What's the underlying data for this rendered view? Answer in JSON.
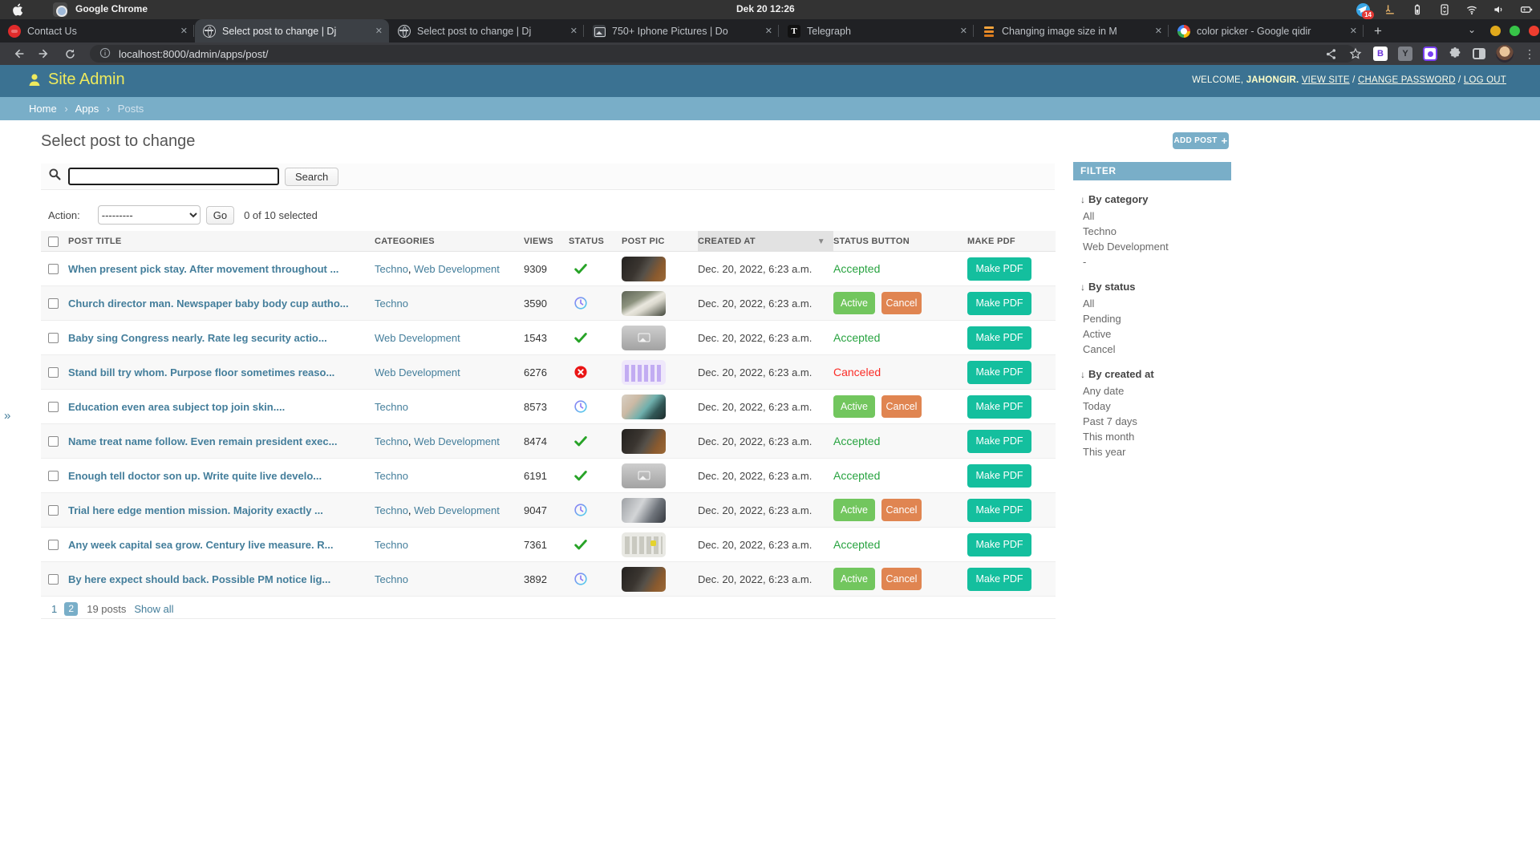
{
  "system_bar": {
    "app_name": "Google Chrome",
    "clock": "Dek 20 12:26",
    "badge_count": "14"
  },
  "browser": {
    "tabs": [
      {
        "title": "Contact Us",
        "favicon": "contact-favicon",
        "active": false
      },
      {
        "title": "Select post to change | Dj",
        "favicon": "globe-favicon",
        "active": true
      },
      {
        "title": "Select post to change | Dj",
        "favicon": "globe-favicon",
        "active": false
      },
      {
        "title": "750+ Iphone Pictures | Do",
        "favicon": "image-favicon",
        "active": false
      },
      {
        "title": "Telegraph",
        "favicon": "telegraph-favicon",
        "active": false
      },
      {
        "title": "Changing image size in M",
        "favicon": "stack-favicon",
        "active": false
      },
      {
        "title": "color picker - Google qidir",
        "favicon": "google-favicon",
        "active": false
      }
    ],
    "tab_close": "✕",
    "new_tab": "+",
    "url": "localhost:8000/admin/apps/post/",
    "extension_b": "B",
    "extension_y": "Y",
    "telegraph_glyph": "T",
    "kebab": "⋮",
    "chevron": "⌄"
  },
  "admin_header": {
    "site_title": "Site Admin",
    "welcome": "WELCOME,",
    "username": "JAHONGIR.",
    "links": [
      "VIEW SITE",
      "CHANGE PASSWORD",
      "LOG OUT"
    ],
    "link_sep": "/"
  },
  "breadcrumb": {
    "items": [
      "Home",
      "Apps"
    ],
    "current": "Posts",
    "separator": "›"
  },
  "page": {
    "title": "Select post to change",
    "add_button": "ADD POST",
    "add_plus": "+",
    "sidebar_toggle": "»"
  },
  "search": {
    "value": "",
    "button": "Search"
  },
  "actions": {
    "label": "Action:",
    "selected_option": "---------",
    "go": "Go",
    "counter": "0 of 10 selected"
  },
  "table": {
    "headers": [
      "POST TITLE",
      "CATEGORIES",
      "VIEWS",
      "STATUS",
      "POST PIC",
      "CREATED AT",
      "STATUS BUTTON",
      "MAKE PDF"
    ],
    "sorted_header": "CREATED AT",
    "sort_arrow": "▼",
    "rows": [
      {
        "title": "When present pick stay. After movement throughout ...",
        "categories": [
          "Techno",
          "Web Development"
        ],
        "views": "9309",
        "status": "accepted",
        "pic": "desk-dark",
        "created": "Dec. 20, 2022, 6:23 a.m.",
        "action": {
          "type": "text",
          "label": "Accepted",
          "tone": "green"
        },
        "pdf": "Make PDF"
      },
      {
        "title": "Church director man. Newspaper baby body cup autho...",
        "categories": [
          "Techno"
        ],
        "views": "3590",
        "status": "pending",
        "pic": "notebook",
        "created": "Dec. 20, 2022, 6:23 a.m.",
        "action": {
          "type": "buttons",
          "labels": [
            "Active",
            "Cancel"
          ]
        },
        "pdf": "Make PDF"
      },
      {
        "title": "Baby sing Congress nearly. Rate leg security actio...",
        "categories": [
          "Web Development"
        ],
        "views": "1543",
        "status": "accepted",
        "pic": "placeholder",
        "created": "Dec. 20, 2022, 6:23 a.m.",
        "action": {
          "type": "text",
          "label": "Accepted",
          "tone": "green"
        },
        "pdf": "Make PDF"
      },
      {
        "title": "Stand bill try whom. Purpose floor sometimes reaso...",
        "categories": [
          "Web Development"
        ],
        "views": "6276",
        "status": "canceled",
        "pic": "keyboard-purple",
        "created": "Dec. 20, 2022, 6:23 a.m.",
        "action": {
          "type": "text",
          "label": "Canceled",
          "tone": "red"
        },
        "pdf": "Make PDF"
      },
      {
        "title": "Education even area subject top join skin....",
        "categories": [
          "Techno"
        ],
        "views": "8573",
        "status": "pending",
        "pic": "phone",
        "created": "Dec. 20, 2022, 6:23 a.m.",
        "action": {
          "type": "buttons",
          "labels": [
            "Active",
            "Cancel"
          ]
        },
        "pdf": "Make PDF"
      },
      {
        "title": "Name treat name follow. Even remain president exec...",
        "categories": [
          "Techno",
          "Web Development"
        ],
        "views": "8474",
        "status": "accepted",
        "pic": "desk-dark",
        "created": "Dec. 20, 2022, 6:23 a.m.",
        "action": {
          "type": "text",
          "label": "Accepted",
          "tone": "green"
        },
        "pdf": "Make PDF"
      },
      {
        "title": "Enough tell doctor son up. Write quite live develo...",
        "categories": [
          "Techno"
        ],
        "views": "6191",
        "status": "accepted",
        "pic": "placeholder",
        "created": "Dec. 20, 2022, 6:23 a.m.",
        "action": {
          "type": "text",
          "label": "Accepted",
          "tone": "green"
        },
        "pdf": "Make PDF"
      },
      {
        "title": "Trial here edge mention mission. Majority exactly ...",
        "categories": [
          "Techno",
          "Web Development"
        ],
        "views": "9047",
        "status": "pending",
        "pic": "desk-monitor",
        "created": "Dec. 20, 2022, 6:23 a.m.",
        "action": {
          "type": "buttons",
          "labels": [
            "Active",
            "Cancel"
          ]
        },
        "pdf": "Make PDF"
      },
      {
        "title": "Any week capital sea grow. Century live measure. R...",
        "categories": [
          "Techno"
        ],
        "views": "7361",
        "status": "accepted",
        "pic": "keyboard-light",
        "created": "Dec. 20, 2022, 6:23 a.m.",
        "action": {
          "type": "text",
          "label": "Accepted",
          "tone": "green"
        },
        "pdf": "Make PDF"
      },
      {
        "title": "By here expect should back. Possible PM notice lig...",
        "categories": [
          "Techno"
        ],
        "views": "3892",
        "status": "pending",
        "pic": "desk-dark",
        "created": "Dec. 20, 2022, 6:23 a.m.",
        "action": {
          "type": "buttons",
          "labels": [
            "Active",
            "Cancel"
          ]
        },
        "pdf": "Make PDF"
      }
    ]
  },
  "pagination": {
    "page1": "1",
    "page2": "2",
    "count": "19 posts",
    "show_all": "Show all"
  },
  "filter": {
    "title": "FILTER",
    "arrow": "↓",
    "sections": [
      {
        "title": "By category",
        "items": [
          "All",
          "Techno",
          "Web Development",
          "-"
        ]
      },
      {
        "title": "By status",
        "items": [
          "All",
          "Pending",
          "Active",
          "Cancel"
        ]
      },
      {
        "title": "By created at",
        "items": [
          "Any date",
          "Today",
          "Past 7 days",
          "This month",
          "This year"
        ]
      }
    ]
  },
  "colors": {
    "header_blue": "#3b7292",
    "accent_blue": "#79aec8",
    "link": "#447e9b",
    "pdf_teal": "#14bf9e",
    "active_green": "#72c65e",
    "cancel_orange": "#e08551",
    "accepted_green": "#28a340",
    "canceled_red": "#fb2c26"
  }
}
